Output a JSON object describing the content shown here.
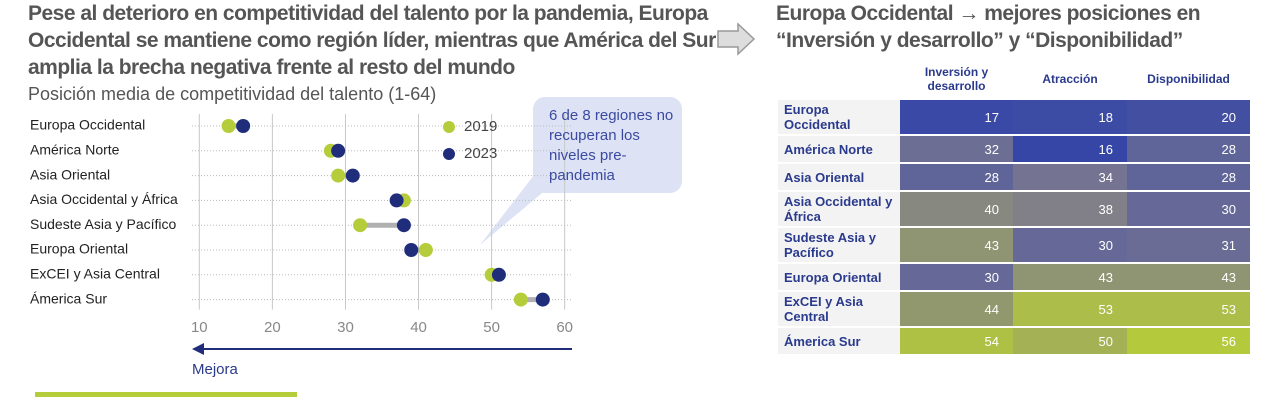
{
  "chart_data": [
    {
      "type": "dumbbell",
      "title": "Pese al deterioro en competitividad del talento por la pandemia, Europa Occidental se mantiene como región líder, mientras que América del Sur amplia la brecha negativa frente al resto del mundo",
      "subtitle": "Posición media de competitividad del talento (1-64)",
      "categories": [
        "Europa Occidental",
        "América Norte",
        "Asia Oriental",
        "Asia Occidental y África",
        "Sudeste Asia y Pacífico",
        "Europa Oriental",
        "ExCEI y Asia Central",
        "Ámerica Sur"
      ],
      "series": [
        {
          "name": "2019",
          "color": "#b6cd3b",
          "values": [
            14,
            28,
            29,
            38,
            32,
            41,
            50,
            54
          ]
        },
        {
          "name": "2023",
          "color": "#1f2d7b",
          "values": [
            16,
            29,
            31,
            37,
            38,
            39,
            51,
            57
          ]
        }
      ],
      "xlim": [
        9,
        61
      ],
      "xticks": [
        10,
        20,
        30,
        40,
        50,
        60
      ],
      "grid": true,
      "legend": "upper right",
      "connector_color": "#b0b0b0",
      "annotation": "6 de 8 regiones no recuperan los niveles pre-pandemia",
      "arrow_label": "Mejora"
    },
    {
      "type": "heatmap",
      "title": "Europa Occidental → mejores posiciones en “Inversión y desarrollo” y “Disponibilidad”",
      "columns": [
        "Inversión y desarrollo",
        "Atracción",
        "Disponibilidad"
      ],
      "rows": [
        "Europa Occidental",
        "América Norte",
        "Asia Oriental",
        "Asia Occidental y África",
        "Sudeste Asia y Pacífico",
        "Europa Oriental",
        "ExCEI y Asia Central",
        "Ámerica Sur"
      ],
      "values": [
        [
          17,
          18,
          20
        ],
        [
          32,
          16,
          28
        ],
        [
          28,
          34,
          28
        ],
        [
          40,
          38,
          30
        ],
        [
          43,
          30,
          31
        ],
        [
          30,
          43,
          43
        ],
        [
          44,
          53,
          53
        ],
        [
          54,
          50,
          56
        ]
      ],
      "colors": [
        "#3546a6",
        "#7b7890",
        "#b5c93c"
      ]
    }
  ]
}
